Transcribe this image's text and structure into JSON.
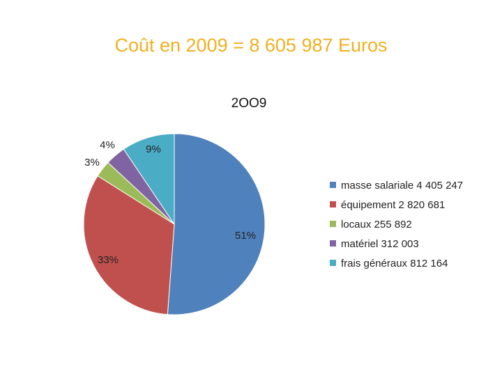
{
  "slide_title": "Coût en 2009 = 8 605 987 Euros",
  "chart_data": {
    "type": "pie",
    "title": "2OO9",
    "series": [
      {
        "name": "masse salariale 4 405 247",
        "value": 4405247,
        "label": "51%",
        "color": "#4f81bd"
      },
      {
        "name": "équipement 2 820 681",
        "value": 2820681,
        "label": "33%",
        "color": "#c0504d"
      },
      {
        "name": "locaux 255 892",
        "value": 255892,
        "label": "3%",
        "color": "#9bbb59"
      },
      {
        "name": "matériel 312 003",
        "value": 312003,
        "label": "4%",
        "color": "#8064a2"
      },
      {
        "name": "frais généraux 812 164",
        "value": 812164,
        "label": "9%",
        "color": "#4bacc6"
      }
    ],
    "legend_position": "right"
  }
}
